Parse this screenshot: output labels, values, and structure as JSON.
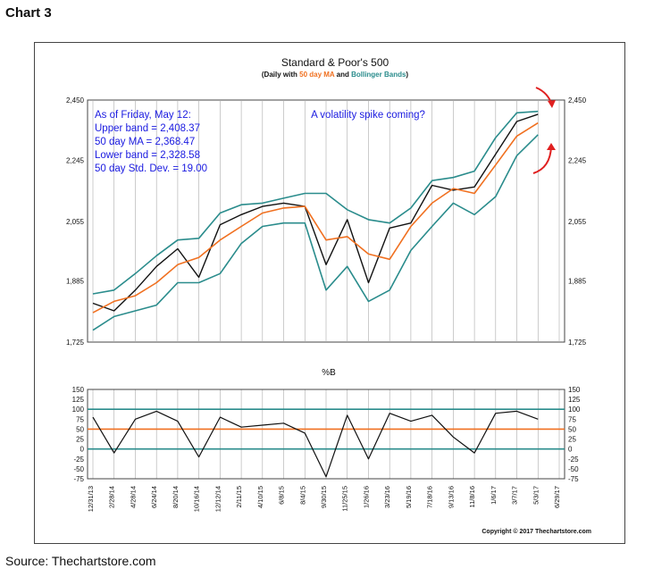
{
  "chart_label": "Chart 3",
  "source": "Source: Thechartstore.com",
  "copyright": "Copyright © 2017 Thechartstore.com",
  "colors": {
    "price": "#111111",
    "ma": "#f07020",
    "bands": "#2a8c8c",
    "annotation_text": "#1a1ae0",
    "arrow": "#e02020",
    "pb_mid": "#f07020",
    "pb_outer": "#2a8c8c"
  },
  "chart_data": [
    {
      "type": "line",
      "title": "Standard & Poor's 500",
      "subtitle": {
        "prefix": "(Daily with ",
        "ma": "50 day MA",
        "and": " and ",
        "bb": "Bollinger Bands",
        "suffix": ")"
      },
      "y_ticks": [
        "2,450",
        "2,245",
        "2,055",
        "1,885",
        "1,725"
      ],
      "y_tick_values": [
        2450,
        2245,
        2055,
        1885,
        1725
      ],
      "log_scale": true,
      "ylim": [
        1725,
        2450
      ],
      "grid": "vertical",
      "annotations": {
        "box_lines": [
          "As of Friday, May 12:",
          "Upper band = 2,408.37",
          "50 day MA = 2,368.47",
          "Lower band = 2,328.58",
          "50 day Std. Dev. = 19.00"
        ],
        "spike_note": "A volatility spike coming?"
      },
      "x": [
        "12/31/13",
        "2/28/14",
        "4/28/14",
        "6/24/14",
        "8/20/14",
        "10/16/14",
        "12/12/14",
        "2/11/15",
        "4/10/15",
        "6/8/15",
        "8/4/15",
        "9/30/15",
        "11/25/15",
        "1/26/16",
        "3/23/16",
        "5/19/16",
        "7/18/16",
        "9/13/16",
        "11/8/16",
        "1/6/17",
        "3/7/17",
        "5/3/17"
      ],
      "series": [
        {
          "name": "S&P 500",
          "values": [
            1825,
            1805,
            1860,
            1925,
            1975,
            1895,
            2045,
            2075,
            2100,
            2110,
            2100,
            1930,
            2060,
            1880,
            2035,
            2050,
            2165,
            2150,
            2160,
            2265,
            2375,
            2400
          ]
        },
        {
          "name": "50 day MA",
          "values": [
            1800,
            1830,
            1845,
            1880,
            1930,
            1950,
            2000,
            2040,
            2080,
            2095,
            2100,
            2000,
            2010,
            1960,
            1945,
            2040,
            2110,
            2155,
            2140,
            2230,
            2325,
            2370
          ]
        },
        {
          "name": "Upper band",
          "values": [
            1850,
            1860,
            1905,
            1955,
            2000,
            2005,
            2080,
            2105,
            2110,
            2125,
            2140,
            2140,
            2090,
            2060,
            2050,
            2095,
            2180,
            2190,
            2210,
            2320,
            2405,
            2410
          ]
        },
        {
          "name": "Lower band",
          "values": [
            1755,
            1790,
            1805,
            1820,
            1880,
            1880,
            1905,
            1990,
            2040,
            2050,
            2050,
            1860,
            1925,
            1830,
            1860,
            1970,
            2040,
            2110,
            2075,
            2130,
            2260,
            2330
          ]
        }
      ]
    },
    {
      "type": "line",
      "title": "%B",
      "y_ticks": [
        "150",
        "125",
        "100",
        "75",
        "50",
        "25",
        "0",
        "-25",
        "-50",
        "-75"
      ],
      "y_tick_values": [
        150,
        125,
        100,
        75,
        50,
        25,
        0,
        -25,
        -50,
        -75
      ],
      "ylim": [
        -75,
        150
      ],
      "reference_lines": [
        100,
        50,
        0
      ],
      "x_ticks": [
        "12/31/13",
        "2/28/14",
        "4/28/14",
        "6/24/14",
        "8/20/14",
        "10/16/14",
        "12/12/14",
        "2/11/15",
        "4/10/15",
        "6/8/15",
        "8/4/15",
        "9/30/15",
        "11/25/15",
        "1/26/16",
        "3/23/16",
        "5/19/16",
        "7/18/16",
        "9/13/16",
        "11/8/16",
        "1/6/17",
        "3/7/17",
        "5/3/17",
        "6/29/17"
      ],
      "series": [
        {
          "name": "%B",
          "values": [
            80,
            -10,
            75,
            95,
            70,
            -20,
            80,
            55,
            60,
            65,
            40,
            -70,
            85,
            -25,
            90,
            70,
            85,
            30,
            -10,
            90,
            95,
            75
          ]
        }
      ]
    }
  ]
}
